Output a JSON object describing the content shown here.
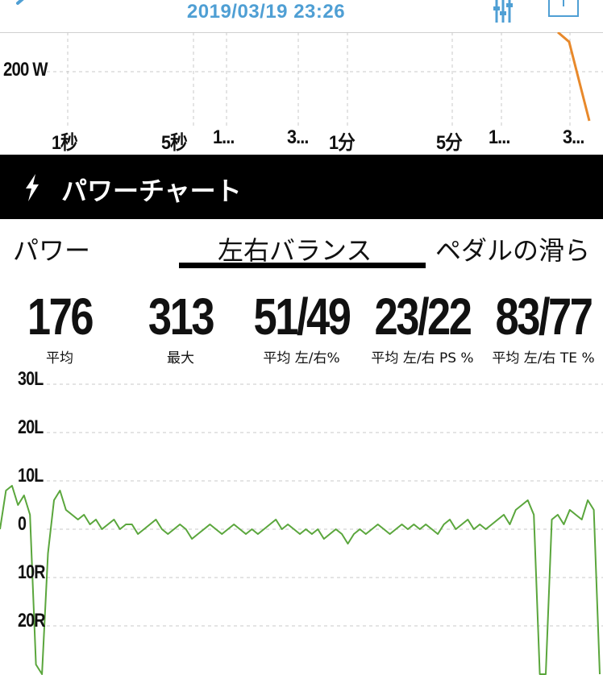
{
  "header": {
    "title": "2019/03/19 23:26",
    "icons": [
      "back-chevron-icon",
      "filter-sliders-icon",
      "share-icon"
    ],
    "accent_color": "#4f9fd4"
  },
  "upper_chart": {
    "y_label": "200 W",
    "x_ticks": [
      "1秒",
      "5秒",
      "1...",
      "3...",
      "1分",
      "5分",
      "1...",
      "3..."
    ],
    "line_color": "#e8892b"
  },
  "section": {
    "title": "パワーチャート",
    "icon": "lightning-bolt-icon"
  },
  "tabs": [
    {
      "label": "パワー",
      "selected": false
    },
    {
      "label": "左右バランス",
      "selected": true
    },
    {
      "label": "ペダルの滑ら",
      "selected": false
    }
  ],
  "stats": [
    {
      "value": "176",
      "label": "平均"
    },
    {
      "value": "313",
      "label": "最大"
    },
    {
      "value": "51/49",
      "label": "平均 左/右%"
    },
    {
      "value": "23/22",
      "label": "平均 左/右 PS %"
    },
    {
      "value": "83/77",
      "label": "平均 左/右 TE %"
    }
  ],
  "chart_data": {
    "type": "line",
    "title": "",
    "xlabel": "",
    "ylabel": "",
    "y_tick_labels": [
      "30L",
      "20L",
      "10L",
      "0",
      "10R",
      "20R"
    ],
    "y_ticks": [
      30,
      20,
      10,
      0,
      -10,
      -20
    ],
    "ylim": [
      -30,
      30
    ],
    "grid": true,
    "series": [
      {
        "color": "#5aa63c",
        "x": [
          0,
          1,
          2,
          3,
          4,
          5,
          6,
          7,
          8,
          9,
          10,
          11,
          12,
          13,
          14,
          15,
          16,
          17,
          18,
          19,
          20,
          21,
          22,
          23,
          24,
          25,
          26,
          27,
          28,
          29,
          30,
          31,
          32,
          33,
          34,
          35,
          36,
          37,
          38,
          39,
          40,
          41,
          42,
          43,
          44,
          45,
          46,
          47,
          48,
          49,
          50,
          51,
          52,
          53,
          54,
          55,
          56,
          57,
          58,
          59,
          60,
          61,
          62,
          63,
          64,
          65,
          66,
          67,
          68,
          69,
          70,
          71,
          72,
          73,
          74,
          75,
          76,
          77,
          78,
          79,
          80,
          81,
          82,
          83,
          84,
          85,
          86,
          87,
          88,
          89,
          90,
          91,
          92,
          93,
          94,
          95,
          96,
          97,
          98,
          99,
          100
        ],
        "y": [
          0,
          8,
          9,
          5,
          7,
          3,
          -28,
          -30,
          -5,
          6,
          8,
          4,
          3,
          2,
          3,
          1,
          2,
          0,
          1,
          2,
          0,
          1,
          1,
          -1,
          0,
          1,
          2,
          0,
          -1,
          0,
          1,
          0,
          -2,
          -1,
          0,
          1,
          0,
          -1,
          0,
          1,
          0,
          -1,
          0,
          -1,
          0,
          1,
          2,
          0,
          1,
          0,
          -1,
          0,
          -1,
          0,
          -2,
          -1,
          0,
          -1,
          -3,
          -1,
          0,
          -1,
          0,
          1,
          0,
          -1,
          0,
          1,
          0,
          1,
          0,
          1,
          0,
          -1,
          1,
          2,
          0,
          1,
          2,
          0,
          1,
          0,
          1,
          2,
          3,
          1,
          4,
          5,
          6,
          3,
          -30,
          -30,
          2,
          3,
          1,
          4,
          3,
          2,
          6,
          4,
          -30
        ]
      }
    ]
  }
}
